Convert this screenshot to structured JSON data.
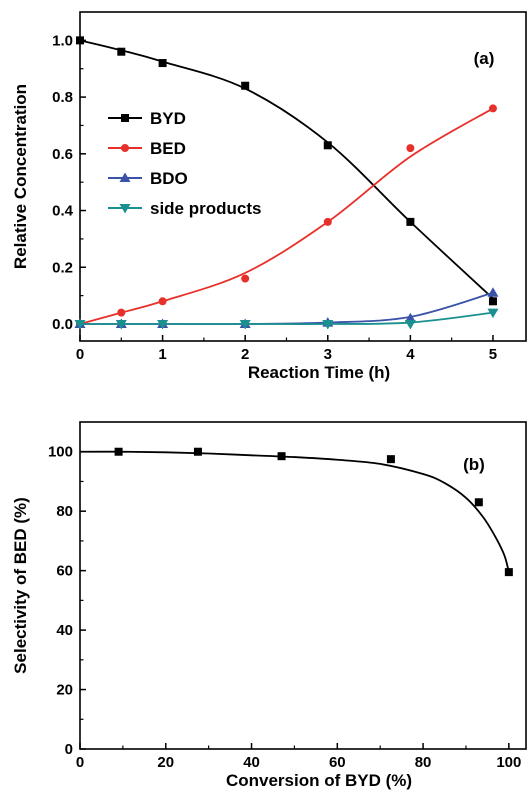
{
  "chart_data": [
    {
      "type": "line",
      "panel_label": "(a)",
      "xlabel": "Reaction Time (h)",
      "ylabel": "Relative Concentration",
      "xlim": [
        0,
        5.4
      ],
      "ylim": [
        -0.06,
        1.1
      ],
      "xticks": [
        0,
        1,
        2,
        3,
        4,
        5
      ],
      "xtick_labels": [
        "0",
        "1",
        "2",
        "3",
        "4",
        "5"
      ],
      "yticks": [
        0.0,
        0.2,
        0.4,
        0.6,
        0.8,
        1.0
      ],
      "ytick_labels": [
        "0.0",
        "0.2",
        "0.4",
        "0.6",
        "0.8",
        "1.0"
      ],
      "grid": false,
      "legend_position": "left",
      "series": [
        {
          "name": "BYD",
          "color": "#000000",
          "marker": "square",
          "x": [
            0,
            0.5,
            1,
            2,
            3,
            4,
            5
          ],
          "y": [
            1.0,
            0.96,
            0.92,
            0.84,
            0.63,
            0.36,
            0.08
          ],
          "fit_y": [
            1.0,
            0.965,
            0.925,
            0.83,
            0.64,
            0.36,
            0.09
          ]
        },
        {
          "name": "BED",
          "color": "#e8302a",
          "marker": "circle",
          "x": [
            0,
            0.5,
            1,
            2,
            3,
            4,
            5
          ],
          "y": [
            0.0,
            0.04,
            0.08,
            0.16,
            0.36,
            0.62,
            0.76
          ],
          "fit_y": [
            0.0,
            0.04,
            0.08,
            0.18,
            0.36,
            0.59,
            0.76
          ]
        },
        {
          "name": "BDO",
          "color": "#3a52a8",
          "marker": "triangle-up",
          "x": [
            0,
            0.5,
            1,
            2,
            3,
            4,
            5
          ],
          "y": [
            0.0,
            0.0,
            0.0,
            0.0,
            0.005,
            0.02,
            0.11
          ],
          "fit_y": [
            0.0,
            0.0,
            0.0,
            0.0,
            0.005,
            0.025,
            0.11
          ]
        },
        {
          "name": "side products",
          "color": "#1a9090",
          "marker": "triangle-down",
          "x": [
            0,
            0.5,
            1,
            2,
            3,
            4,
            5
          ],
          "y": [
            0.0,
            0.0,
            0.0,
            0.0,
            0.0,
            0.0,
            0.04
          ],
          "fit_y": [
            0.0,
            0.0,
            0.0,
            0.0,
            0.0,
            0.005,
            0.04
          ]
        }
      ]
    },
    {
      "type": "scatter",
      "panel_label": "(b)",
      "xlabel": "Conversion of BYD (%)",
      "ylabel": "Selectivity of BED (%)",
      "xlim": [
        0,
        104
      ],
      "ylim": [
        0,
        110
      ],
      "xticks": [
        0,
        20,
        40,
        60,
        80,
        100
      ],
      "xtick_labels": [
        "0",
        "20",
        "40",
        "60",
        "80",
        "100"
      ],
      "yticks": [
        0,
        20,
        40,
        60,
        80,
        100
      ],
      "ytick_labels": [
        "0",
        "20",
        "40",
        "60",
        "80",
        "100"
      ],
      "grid": false,
      "series": [
        {
          "name": "",
          "color": "#000000",
          "marker": "square",
          "x": [
            9,
            27.5,
            47,
            72.5,
            93,
            100
          ],
          "y": [
            100,
            100,
            98.5,
            97.5,
            83,
            59.5
          ],
          "fit_x": [
            0,
            10,
            20,
            30,
            40,
            50,
            60,
            70,
            80,
            85,
            90,
            94,
            97,
            99,
            100
          ],
          "fit_y": [
            100,
            100,
            99.8,
            99.4,
            98.8,
            98.2,
            97.3,
            95.9,
            92.5,
            89.5,
            84.5,
            78,
            71,
            65,
            59.5
          ]
        }
      ]
    }
  ]
}
